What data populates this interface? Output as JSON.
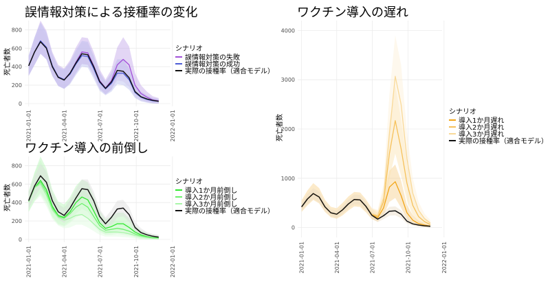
{
  "chart_data": [
    {
      "type": "line",
      "title": "誤情報対策による接種率の変化",
      "xlabel": "",
      "ylabel": "死亡者数",
      "x_ticks": [
        "2021-01-01",
        "2021-04-01",
        "2021-07-01",
        "2021-10-01",
        "2022-01-01"
      ],
      "x": [
        0,
        15,
        30,
        45,
        60,
        75,
        90,
        105,
        120,
        135,
        150,
        165,
        180,
        195,
        210,
        225,
        240,
        255,
        270,
        285,
        300,
        315,
        330
      ],
      "ylim": [
        -30,
        900
      ],
      "y_ticks": [
        0,
        200,
        400,
        600,
        800
      ],
      "legend_title": "シナリオ",
      "series": [
        {
          "name": "誤情報対策の失敗",
          "color": "#a14fd8",
          "band": "#c2a3e8",
          "values": [
            410,
            560,
            680,
            610,
            410,
            290,
            260,
            330,
            450,
            560,
            550,
            410,
            250,
            170,
            250,
            420,
            480,
            420,
            200,
            110,
            70,
            40,
            30
          ],
          "lower": [
            300,
            420,
            540,
            480,
            300,
            190,
            160,
            220,
            330,
            430,
            420,
            300,
            160,
            100,
            150,
            280,
            320,
            270,
            110,
            50,
            20,
            5,
            0
          ],
          "upper": [
            520,
            720,
            900,
            790,
            560,
            420,
            380,
            470,
            610,
            720,
            710,
            560,
            370,
            260,
            370,
            610,
            720,
            620,
            330,
            200,
            130,
            80,
            60
          ]
        },
        {
          "name": "誤情報対策の成功",
          "color": "#4a5bd6",
          "band": "#b8bdf0",
          "values": [
            410,
            560,
            680,
            610,
            410,
            290,
            260,
            320,
            430,
            520,
            510,
            380,
            230,
            160,
            220,
            330,
            330,
            260,
            120,
            70,
            45,
            30,
            25
          ],
          "lower": [
            300,
            420,
            540,
            480,
            300,
            190,
            160,
            210,
            310,
            400,
            390,
            270,
            140,
            90,
            130,
            210,
            200,
            150,
            60,
            25,
            10,
            0,
            0
          ],
          "upper": [
            520,
            720,
            880,
            770,
            540,
            400,
            370,
            450,
            580,
            680,
            670,
            520,
            340,
            240,
            330,
            480,
            480,
            380,
            200,
            130,
            90,
            60,
            50
          ]
        },
        {
          "name": "実際の接種率（適合モデル）",
          "color": "#111111",
          "band": "#cfc6ee",
          "values": [
            410,
            560,
            670,
            600,
            400,
            285,
            255,
            330,
            440,
            540,
            530,
            400,
            240,
            165,
            235,
            360,
            350,
            280,
            130,
            75,
            50,
            35,
            25
          ],
          "lower": [
            310,
            430,
            550,
            490,
            310,
            200,
            170,
            230,
            330,
            430,
            420,
            300,
            160,
            100,
            150,
            250,
            240,
            180,
            70,
            30,
            15,
            5,
            0
          ],
          "upper": [
            510,
            690,
            820,
            730,
            510,
            380,
            350,
            440,
            560,
            660,
            650,
            510,
            330,
            240,
            330,
            480,
            470,
            380,
            200,
            130,
            90,
            65,
            50
          ]
        }
      ]
    },
    {
      "type": "line",
      "title": "ワクチン導入の前倒し",
      "xlabel": "",
      "ylabel": "死亡者数",
      "x_ticks": [
        "2021-01-01",
        "2021-04-01",
        "2021-07-01",
        "2021-10-01",
        "2022-01-01"
      ],
      "x": [
        0,
        15,
        30,
        45,
        60,
        75,
        90,
        105,
        120,
        135,
        150,
        165,
        180,
        195,
        210,
        225,
        240,
        255,
        270,
        285,
        300,
        315,
        330
      ],
      "ylim": [
        -30,
        900
      ],
      "y_ticks": [
        0,
        200,
        400,
        600,
        800
      ],
      "legend_title": "シナリオ",
      "series": [
        {
          "name": "導入1か月前倒し",
          "color": "#2ee82e",
          "band": "#b5f5b5",
          "values": [
            410,
            560,
            640,
            540,
            360,
            260,
            240,
            300,
            400,
            460,
            430,
            310,
            180,
            120,
            140,
            170,
            170,
            130,
            80,
            50,
            30,
            20,
            15
          ],
          "lower": [
            300,
            420,
            510,
            410,
            250,
            170,
            150,
            200,
            280,
            330,
            300,
            200,
            100,
            60,
            70,
            90,
            90,
            60,
            30,
            10,
            5,
            0,
            0
          ],
          "upper": [
            520,
            730,
            900,
            770,
            540,
            410,
            380,
            460,
            580,
            650,
            620,
            470,
            310,
            220,
            250,
            290,
            290,
            230,
            150,
            100,
            70,
            50,
            40
          ]
        },
        {
          "name": "導入2か月前倒し",
          "color": "#6cf06c",
          "band": "#caf8ca",
          "values": [
            410,
            560,
            620,
            510,
            340,
            250,
            230,
            280,
            350,
            390,
            350,
            250,
            150,
            100,
            110,
            120,
            110,
            90,
            60,
            40,
            25,
            15,
            10
          ],
          "lower": [
            300,
            420,
            490,
            390,
            240,
            160,
            140,
            180,
            240,
            270,
            240,
            150,
            80,
            50,
            50,
            60,
            50,
            40,
            20,
            5,
            0,
            0,
            0
          ],
          "upper": [
            520,
            720,
            860,
            720,
            500,
            380,
            350,
            420,
            500,
            550,
            500,
            380,
            250,
            180,
            190,
            200,
            190,
            160,
            110,
            80,
            55,
            40,
            30
          ]
        },
        {
          "name": "導入3か月前倒し",
          "color": "#a8f5a8",
          "band": "#ddfbdd",
          "values": [
            410,
            560,
            600,
            480,
            320,
            240,
            210,
            230,
            260,
            270,
            230,
            170,
            110,
            80,
            80,
            80,
            75,
            60,
            45,
            30,
            20,
            12,
            8
          ],
          "lower": [
            300,
            410,
            470,
            360,
            220,
            150,
            120,
            130,
            160,
            160,
            130,
            90,
            50,
            30,
            30,
            30,
            25,
            20,
            10,
            0,
            0,
            0,
            0
          ],
          "upper": [
            520,
            700,
            820,
            680,
            470,
            360,
            320,
            350,
            390,
            400,
            350,
            280,
            200,
            150,
            150,
            150,
            140,
            120,
            90,
            60,
            45,
            30,
            25
          ]
        },
        {
          "name": "実際の接種率（適合モデル）",
          "color": "#111111",
          "band": "#dcdcdc",
          "values": [
            420,
            580,
            690,
            620,
            420,
            300,
            260,
            340,
            450,
            550,
            540,
            420,
            250,
            170,
            240,
            330,
            340,
            270,
            130,
            75,
            50,
            35,
            25
          ],
          "lower": [
            330,
            460,
            560,
            500,
            330,
            220,
            180,
            250,
            350,
            440,
            430,
            320,
            170,
            110,
            160,
            240,
            250,
            190,
            80,
            40,
            20,
            10,
            5
          ],
          "upper": [
            510,
            690,
            820,
            740,
            510,
            380,
            340,
            430,
            550,
            650,
            650,
            520,
            330,
            240,
            320,
            420,
            430,
            350,
            190,
            120,
            80,
            60,
            50
          ]
        }
      ]
    },
    {
      "type": "line",
      "title": "ワクチン導入の遅れ",
      "xlabel": "",
      "ylabel": "死亡者数",
      "x_ticks": [
        "2021-01-01",
        "2021-04-01",
        "2021-07-01",
        "2021-10-01",
        "2022-01-01"
      ],
      "x": [
        0,
        15,
        30,
        45,
        60,
        75,
        90,
        105,
        120,
        135,
        150,
        165,
        180,
        195,
        210,
        225,
        240,
        255,
        270,
        285,
        300,
        315,
        330
      ],
      "ylim": [
        -200,
        4200
      ],
      "y_ticks": [
        0,
        1000,
        2000,
        3000,
        4000
      ],
      "legend_title": "シナリオ",
      "series": [
        {
          "name": "導入1か月遅れ",
          "color": "#f2a516",
          "band": "#f6cf89",
          "values": [
            420,
            580,
            690,
            620,
            420,
            300,
            270,
            360,
            480,
            570,
            560,
            430,
            260,
            200,
            400,
            820,
            930,
            650,
            300,
            150,
            80,
            50,
            30
          ],
          "lower": [
            320,
            450,
            560,
            490,
            320,
            210,
            180,
            250,
            350,
            430,
            420,
            310,
            170,
            120,
            250,
            520,
            600,
            400,
            170,
            70,
            30,
            10,
            0
          ],
          "upper": [
            550,
            750,
            900,
            800,
            560,
            420,
            390,
            500,
            630,
            720,
            710,
            570,
            380,
            300,
            600,
            1150,
            1280,
            950,
            460,
            250,
            140,
            90,
            60
          ]
        },
        {
          "name": "導入2か月遅れ",
          "color": "#f6c15a",
          "band": "#fae2b0",
          "values": [
            420,
            580,
            690,
            620,
            420,
            300,
            270,
            360,
            480,
            570,
            560,
            430,
            270,
            230,
            520,
            1500,
            2170,
            1600,
            900,
            450,
            220,
            120,
            60
          ],
          "lower": [
            320,
            450,
            560,
            490,
            320,
            210,
            180,
            250,
            350,
            430,
            420,
            310,
            180,
            140,
            330,
            1000,
            1500,
            1050,
            550,
            250,
            100,
            50,
            20
          ],
          "upper": [
            550,
            750,
            900,
            800,
            560,
            420,
            390,
            500,
            630,
            720,
            710,
            570,
            390,
            340,
            760,
            2100,
            2900,
            2200,
            1300,
            700,
            360,
            200,
            110
          ]
        },
        {
          "name": "導入3か月遅れ",
          "color": "#f9d998",
          "band": "#fcefd6",
          "values": [
            420,
            580,
            690,
            620,
            420,
            300,
            270,
            360,
            480,
            570,
            560,
            430,
            280,
            250,
            600,
            1900,
            3070,
            2500,
            1400,
            700,
            350,
            180,
            90
          ],
          "lower": [
            320,
            450,
            560,
            490,
            320,
            210,
            180,
            250,
            350,
            430,
            420,
            310,
            190,
            160,
            380,
            1300,
            2200,
            1750,
            900,
            420,
            180,
            80,
            30
          ],
          "upper": [
            550,
            750,
            900,
            800,
            560,
            420,
            390,
            500,
            630,
            720,
            710,
            570,
            400,
            360,
            880,
            2700,
            3900,
            3300,
            1950,
            1000,
            520,
            280,
            150
          ]
        },
        {
          "name": "実際の接種率（適合モデル）",
          "color": "#111111",
          "band": "#e8dcc6",
          "values": [
            420,
            580,
            690,
            620,
            420,
            300,
            270,
            360,
            480,
            570,
            560,
            430,
            250,
            170,
            240,
            330,
            340,
            270,
            130,
            75,
            50,
            35,
            25
          ],
          "lower": [
            340,
            480,
            580,
            510,
            340,
            230,
            200,
            280,
            390,
            470,
            460,
            340,
            180,
            110,
            170,
            240,
            250,
            190,
            80,
            40,
            20,
            10,
            5
          ],
          "upper": [
            500,
            680,
            800,
            730,
            500,
            370,
            340,
            440,
            570,
            670,
            660,
            520,
            320,
            240,
            310,
            420,
            430,
            350,
            190,
            120,
            80,
            60,
            50
          ]
        }
      ]
    }
  ]
}
